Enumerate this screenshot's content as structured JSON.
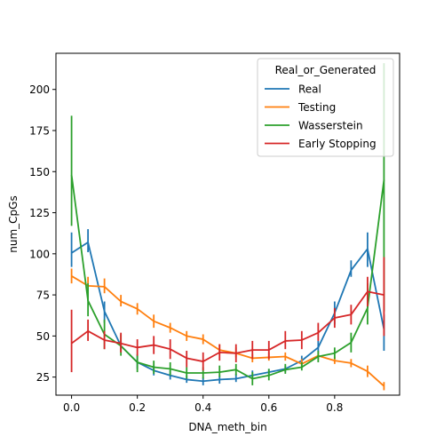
{
  "chart_data": {
    "type": "line",
    "title": "",
    "xlabel": "DNA_meth_bin",
    "ylabel": "num_CpGs",
    "xlim": [
      -0.0475,
      0.9975
    ],
    "ylim": [
      14,
      222
    ],
    "xticks": [
      0.0,
      0.2,
      0.4,
      0.6,
      0.8
    ],
    "xtick_labels": [
      "0.0",
      "0.2",
      "0.4",
      "0.6",
      "0.8"
    ],
    "yticks": [
      25,
      50,
      75,
      100,
      125,
      150,
      175,
      200
    ],
    "ytick_labels": [
      "25",
      "50",
      "75",
      "100",
      "125",
      "150",
      "175",
      "200"
    ],
    "grid": false,
    "legend": {
      "title": "Real_or_Generated",
      "placement": "top-right"
    },
    "x": [
      0.0,
      0.05,
      0.1,
      0.15,
      0.2,
      0.25,
      0.3,
      0.35,
      0.4,
      0.45,
      0.5,
      0.55,
      0.6,
      0.65,
      0.7,
      0.75,
      0.8,
      0.85,
      0.9,
      0.95
    ],
    "series": [
      {
        "name": "Real",
        "color": "#1f77b4",
        "values": [
          100.5,
          107,
          65,
          44,
          34,
          29,
          26,
          23.5,
          22.5,
          23.5,
          24,
          26,
          28,
          30,
          35,
          43,
          64,
          90,
          103,
          54
        ],
        "err_low": [
          92,
          101,
          58,
          40,
          30,
          26,
          23.5,
          21.5,
          20,
          21,
          22,
          24,
          26,
          28,
          33,
          40,
          57,
          86,
          92,
          41
        ],
        "err_high": [
          113,
          115,
          71,
          47,
          38,
          32,
          29,
          26,
          25,
          26,
          27,
          29,
          30,
          32,
          38,
          47,
          71,
          96,
          113,
          63
        ]
      },
      {
        "name": "Testing",
        "color": "#ff7f0e",
        "values": [
          86.5,
          80.5,
          80,
          71,
          66.5,
          59,
          55,
          50,
          48,
          41.5,
          39.5,
          36.5,
          37,
          37.5,
          33,
          38,
          35,
          33.5,
          28.5,
          19.5
        ],
        "err_low": [
          82,
          75,
          76,
          68,
          63,
          55,
          52,
          47,
          45,
          39,
          37,
          34,
          35,
          35,
          31,
          36,
          33,
          31,
          25,
          17
        ],
        "err_high": [
          91,
          86,
          85,
          75,
          70,
          63,
          58,
          53,
          51,
          45,
          43,
          39,
          40,
          40,
          36,
          40,
          37,
          36,
          32,
          22
        ]
      },
      {
        "name": "Wasserstein",
        "color": "#2ca02c",
        "values": [
          148,
          71.5,
          51,
          44,
          34,
          31,
          30,
          27.5,
          27.5,
          28,
          29.5,
          24,
          26,
          29.5,
          31,
          37.5,
          39.5,
          46,
          67,
          145
        ],
        "err_low": [
          117,
          62,
          42,
          38,
          28,
          27,
          26,
          24,
          24,
          25,
          26,
          20,
          23,
          27,
          29,
          34,
          36,
          40,
          57,
          65
        ],
        "err_high": [
          184,
          82,
          60,
          51,
          39,
          35,
          34,
          31,
          31,
          32,
          33,
          28,
          30,
          33,
          34,
          41,
          43,
          52,
          82,
          216
        ]
      },
      {
        "name": "Early Stopping",
        "color": "#d62728",
        "values": [
          45.5,
          53,
          47.5,
          45.5,
          43,
          44.5,
          42,
          36.5,
          34.5,
          40,
          39.5,
          41.5,
          41.5,
          47,
          47.5,
          52,
          61,
          63,
          77,
          75
        ],
        "err_low": [
          28,
          47,
          42,
          40,
          38,
          39,
          36,
          31,
          29,
          35,
          34,
          36,
          36,
          42,
          42,
          47,
          55,
          57,
          68,
          50
        ],
        "err_high": [
          66,
          60,
          53,
          52,
          48,
          50,
          48,
          41,
          40,
          45,
          45,
          47,
          47,
          53,
          53,
          58,
          67,
          69,
          86,
          98
        ]
      }
    ]
  }
}
